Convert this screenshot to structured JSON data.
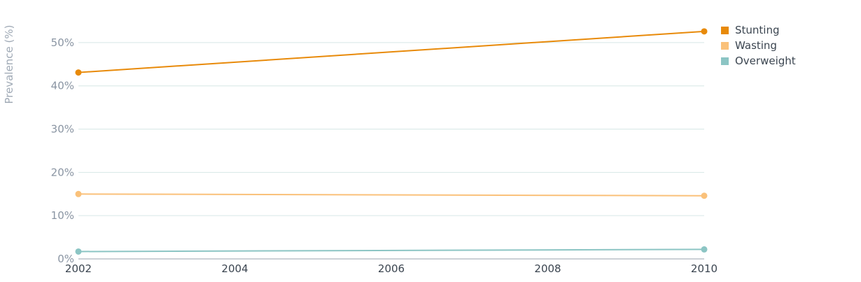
{
  "chart_data": {
    "type": "line",
    "title": "",
    "xlabel": "",
    "ylabel": "Prevalence (%)",
    "x": [
      2002,
      2010
    ],
    "xticks": [
      "2002",
      "2004",
      "2006",
      "2008",
      "2010"
    ],
    "xlim": [
      2002,
      2010
    ],
    "yticks": [
      "0%",
      "10%",
      "20%",
      "30%",
      "40%",
      "50%"
    ],
    "ylim": [
      0,
      55
    ],
    "grid": "horizontal",
    "legend_position": "top-right",
    "series": [
      {
        "name": "Stunting",
        "color": "#e88a0a",
        "values": [
          43.1,
          52.6
        ]
      },
      {
        "name": "Wasting",
        "color": "#fac17a",
        "values": [
          15.0,
          14.6
        ]
      },
      {
        "name": "Overweight",
        "color": "#8cc5c4",
        "values": [
          1.7,
          2.2
        ]
      }
    ]
  }
}
